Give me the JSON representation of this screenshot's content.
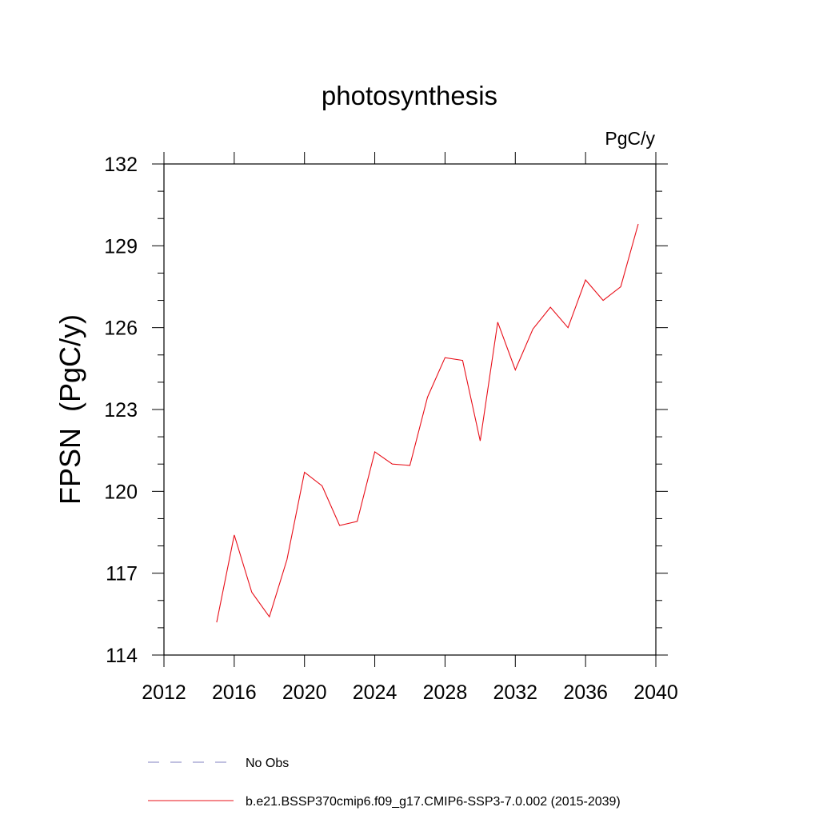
{
  "chart_data": {
    "type": "line",
    "title": "photosynthesis",
    "units_label": "PgC/y",
    "ylabel": "FPSN  (PgC/y)",
    "xlabel": "",
    "xlim": [
      2012,
      2040
    ],
    "ylim": [
      114,
      132
    ],
    "x_ticks": [
      2012,
      2016,
      2020,
      2024,
      2028,
      2032,
      2036,
      2040
    ],
    "y_ticks": [
      114,
      117,
      120,
      123,
      126,
      129,
      132
    ],
    "grid": false,
    "legend_position": "bottom",
    "legend": [
      {
        "name": "No Obs",
        "color": "#8080c0",
        "style": "dashed"
      },
      {
        "name": "b.e21.BSSP370cmip6.f09_g17.CMIP6-SSP3-7.0.002 (2015-2039)",
        "color": "#e8101a",
        "style": "solid"
      }
    ],
    "series": [
      {
        "name": "b.e21.BSSP370cmip6.f09_g17.CMIP6-SSP3-7.0.002 (2015-2039)",
        "color": "#e8101a",
        "x": [
          2015,
          2016,
          2017,
          2018,
          2019,
          2020,
          2021,
          2022,
          2023,
          2024,
          2025,
          2026,
          2027,
          2028,
          2029,
          2030,
          2031,
          2032,
          2033,
          2034,
          2035,
          2036,
          2037,
          2038,
          2039
        ],
        "values": [
          115.2,
          118.4,
          116.3,
          115.4,
          117.5,
          120.7,
          120.2,
          118.75,
          118.9,
          121.45,
          121.0,
          120.95,
          123.45,
          124.9,
          124.8,
          121.85,
          126.2,
          124.45,
          125.95,
          126.75,
          126.0,
          127.75,
          127.0,
          127.5,
          129.8
        ]
      }
    ]
  }
}
